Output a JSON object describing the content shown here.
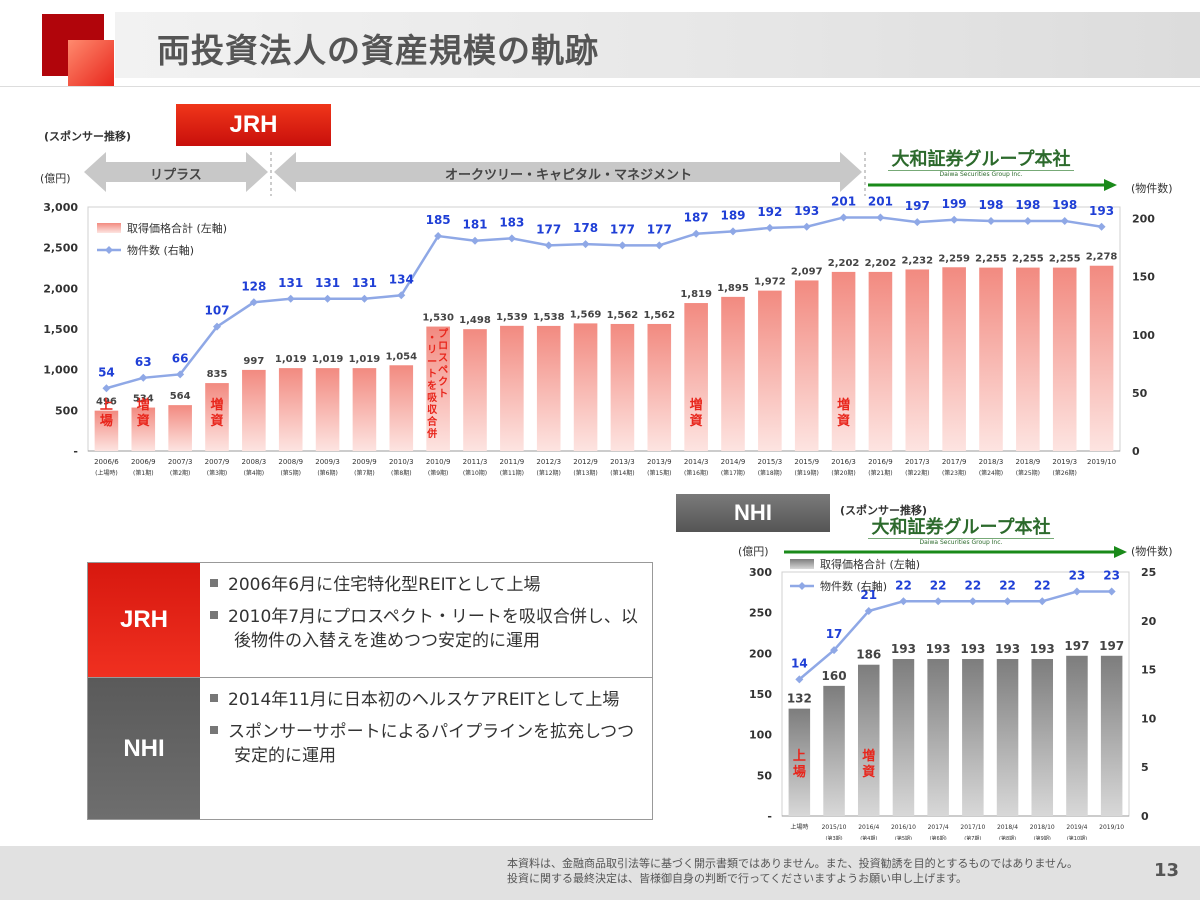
{
  "page": {
    "title": "両投資法人の資産規模の軌跡",
    "page_number": "13",
    "disclaimer_line1": "本資料は、金融商品取引法等に基づく開示書類ではありません。また、投資勧誘を目的とするものではありません。",
    "disclaimer_line2": "投資に関する最終決定は、皆様御自身の判断で行ってくださいますようお願い申し上げます。"
  },
  "jrh": {
    "badge": "JRH",
    "sponsor_note": "(スポンサー推移)",
    "left_unit": "(億円)",
    "right_unit": "(物件数)",
    "sponsors": [
      "リプラス",
      "オークツリー・キャピタル・マネジメント"
    ],
    "daiwa_logo": "大和証券グループ本社",
    "daiwa_logo_sub": "Daiwa Securities Group Inc."
  },
  "nhi": {
    "badge": "NHI",
    "sponsor_note": "(スポンサー推移)",
    "left_unit": "(億円)",
    "right_unit": "(物件数)",
    "daiwa_logo": "大和証券グループ本社",
    "daiwa_logo_sub": "Daiwa Securities Group Inc."
  },
  "summary": {
    "rows": [
      {
        "label": "JRH",
        "items": [
          "2006年6月に住宅特化型REITとして上場",
          "2010年7月にプロスペクト・リートを吸収合併し、以後物件の入替えを進めつつ安定的に運用"
        ]
      },
      {
        "label": "NHI",
        "items": [
          "2014年11月に日本初のヘルスケアREITとして上場",
          "スポンサーサポートによるパイプラインを拡充しつつ安定的に運用"
        ]
      }
    ]
  },
  "colors": {
    "jrh_red": "#e8261c",
    "nhi_gray": "#666666",
    "line_blue": "#8fa8e6",
    "count_label_blue": "#1f3fd6",
    "daiwa_green": "#1a8a1a"
  },
  "chart_data": [
    {
      "type": "bar",
      "title": "JRH",
      "categories": [
        "2006/6",
        "2006/9",
        "2007/3",
        "2007/9",
        "2008/3",
        "2008/9",
        "2009/3",
        "2009/9",
        "2010/3",
        "2010/9",
        "2011/3",
        "2011/9",
        "2012/3",
        "2012/9",
        "2013/3",
        "2013/9",
        "2014/3",
        "2014/9",
        "2015/3",
        "2015/9",
        "2016/3",
        "2016/9",
        "2017/3",
        "2017/9",
        "2018/3",
        "2018/9",
        "2019/3",
        "2019/10"
      ],
      "sub_labels": [
        "(上場時)",
        "(第1期)",
        "(第2期)",
        "(第3期)",
        "(第4期)",
        "(第5期)",
        "(第6期)",
        "(第7期)",
        "(第8期)",
        "(第9期)",
        "(第10期)",
        "(第11期)",
        "(第12期)",
        "(第13期)",
        "(第14期)",
        "(第15期)",
        "(第16期)",
        "(第17期)",
        "(第18期)",
        "(第19期)",
        "(第20期)",
        "(第21期)",
        "(第22期)",
        "(第23期)",
        "(第24期)",
        "(第25期)",
        "(第26期)",
        ""
      ],
      "series": [
        {
          "name": "取得価格合計 (左軸)",
          "axis": "left",
          "values": [
            496,
            534,
            564,
            835,
            997,
            1019,
            1019,
            1019,
            1054,
            1530,
            1498,
            1539,
            1538,
            1569,
            1562,
            1562,
            1819,
            1895,
            1972,
            2097,
            2202,
            2202,
            2232,
            2259,
            2255,
            2255,
            2255,
            2278
          ]
        },
        {
          "name": "物件数 (右軸)",
          "axis": "right",
          "values": [
            54,
            63,
            66,
            107,
            128,
            131,
            131,
            131,
            134,
            185,
            181,
            183,
            177,
            178,
            177,
            177,
            187,
            189,
            192,
            193,
            201,
            201,
            197,
            199,
            198,
            198,
            198,
            193
          ]
        }
      ],
      "value_labels": [
        "496",
        "534",
        "564",
        "835",
        "997",
        "1,019",
        "1,019",
        "1,019",
        "1,054",
        "1,530",
        "1,498",
        "1,539",
        "1,538",
        "1,569",
        "1,562",
        "1,562",
        "1,819",
        "1,895",
        "1,972",
        "2,097",
        "2,202",
        "2,202",
        "2,232",
        "2,259",
        "2,255",
        "2,255",
        "2,255",
        "2,278"
      ],
      "left_ticks": [
        "-",
        "500",
        "1,000",
        "1,500",
        "2,000",
        "2,500",
        "3,000"
      ],
      "right_ticks": [
        "0",
        "50",
        "100",
        "150",
        "200"
      ],
      "ylim_left": [
        0,
        3000
      ],
      "ylim_right": [
        0,
        210
      ],
      "bar_annotations": [
        {
          "index": 0,
          "text": "上場"
        },
        {
          "index": 1,
          "text": "増資"
        },
        {
          "index": 3,
          "text": "増資"
        },
        {
          "index": 9,
          "text": "プロスペクト・リートを吸収合併"
        },
        {
          "index": 16,
          "text": "増資"
        },
        {
          "index": 20,
          "text": "増資"
        }
      ],
      "legend": [
        "取得価格合計 (左軸)",
        "物件数 (右軸)"
      ]
    },
    {
      "type": "bar",
      "title": "NHI",
      "categories": [
        "上場時",
        "2015/10",
        "2016/4",
        "2016/10",
        "2017/4",
        "2017/10",
        "2018/4",
        "2018/10",
        "2019/4",
        "2019/10"
      ],
      "sub_labels": [
        "",
        "(第3期)",
        "(第4期)",
        "(第5期)",
        "(第6期)",
        "(第7期)",
        "(第8期)",
        "(第9期)",
        "(第10期)",
        ""
      ],
      "series": [
        {
          "name": "取得価格合計 (左軸)",
          "axis": "left",
          "values": [
            132,
            160,
            186,
            193,
            193,
            193,
            193,
            193,
            197,
            197
          ]
        },
        {
          "name": "物件数 (右軸)",
          "axis": "right",
          "values": [
            14,
            17,
            21,
            22,
            22,
            22,
            22,
            22,
            23,
            23
          ]
        }
      ],
      "value_labels": [
        "132",
        "160",
        "186",
        "193",
        "193",
        "193",
        "193",
        "193",
        "197",
        "197"
      ],
      "left_ticks": [
        "-",
        "50",
        "100",
        "150",
        "200",
        "250",
        "300"
      ],
      "right_ticks": [
        "0",
        "5",
        "10",
        "15",
        "20",
        "25"
      ],
      "ylim_left": [
        0,
        300
      ],
      "ylim_right": [
        0,
        25
      ],
      "bar_annotations": [
        {
          "index": 0,
          "text": "上場"
        },
        {
          "index": 2,
          "text": "増資"
        }
      ],
      "legend": [
        "取得価格合計 (左軸)",
        "物件数 (右軸)"
      ]
    }
  ]
}
